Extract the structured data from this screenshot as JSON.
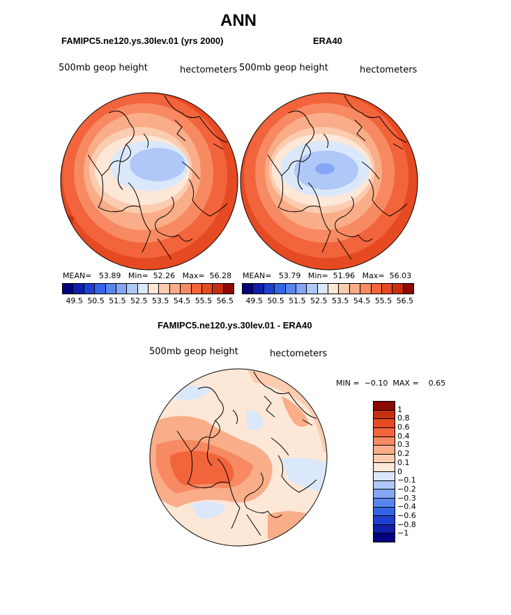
{
  "title": "ANN",
  "panels": [
    {
      "case": "FAMIPC5.ne120.ys.30lev.01 (yrs 2000)",
      "field": "500mb geop height",
      "units": "hectometers",
      "mean_label": "MEAN=",
      "mean": "53.89",
      "min_label": "Min=",
      "min": "52.26",
      "max_label": "Max=",
      "max": "56.28"
    },
    {
      "case": "ERA40",
      "field": "500mb geop height",
      "units": "hectometers",
      "mean_label": "MEAN=",
      "mean": "53.79",
      "min_label": "Min=",
      "min": "51.96",
      "max_label": "Max=",
      "max": "56.03"
    }
  ],
  "colorbar_ticks": [
    "49.5",
    "50.5",
    "51.5",
    "52.5",
    "53.5",
    "54.5",
    "55.5",
    "56.5"
  ],
  "colorbar_colors": [
    "#00007f",
    "#0f1fa8",
    "#1f40cf",
    "#3366e6",
    "#5a85ee",
    "#84a6f4",
    "#b0c8f8",
    "#dbe8fb",
    "#fde7d6",
    "#fbccb0",
    "#f9ad88",
    "#f78a62",
    "#f2643c",
    "#e64a22",
    "#c7300f",
    "#8c0a00"
  ],
  "diff": {
    "title": "FAMIPC5.ne120.ys.30lev.01 - ERA40",
    "field": "500mb geop height",
    "units": "hectometers",
    "min_label": "MIN =",
    "min": "−0.10",
    "max_label": "MAX =",
    "max": "0.65",
    "ticks": [
      "1",
      "0.8",
      "0.6",
      "0.4",
      "0.3",
      "0.2",
      "0.1",
      "0",
      "−0.1",
      "−0.2",
      "−0.3",
      "−0.4",
      "−0.6",
      "−0.8",
      "−1"
    ],
    "colors": [
      "#8c0a00",
      "#c7300f",
      "#e64a22",
      "#f2643c",
      "#f78a62",
      "#f9ad88",
      "#fbccb0",
      "#fde7d6",
      "#dbe8fb",
      "#b0c8f8",
      "#84a6f4",
      "#5a85ee",
      "#3366e6",
      "#1f40cf",
      "#0f1fa8",
      "#00007f"
    ]
  }
}
